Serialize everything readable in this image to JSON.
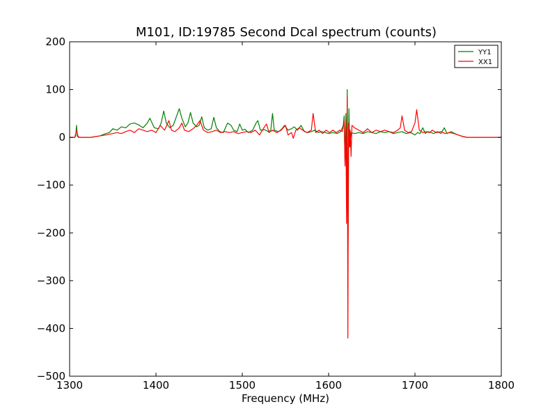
{
  "chart_data": {
    "type": "line",
    "title": "M101, ID:19785 Second Dcal spectrum (counts)",
    "xlabel": "Frequency (MHz)",
    "ylabel": "",
    "xlim": [
      1300,
      1800
    ],
    "ylim": [
      -500,
      200
    ],
    "xticks": [
      1300,
      1400,
      1500,
      1600,
      1700,
      1800
    ],
    "yticks": [
      -500,
      -400,
      -300,
      -200,
      -100,
      0,
      100,
      200
    ],
    "legend": "top-right",
    "series": [
      {
        "name": "YY1",
        "color": "#008000",
        "points": [
          [
            1300,
            0
          ],
          [
            1306,
            0
          ],
          [
            1307,
            3
          ],
          [
            1308,
            25
          ],
          [
            1309,
            2
          ],
          [
            1312,
            0
          ],
          [
            1325,
            0
          ],
          [
            1335,
            3
          ],
          [
            1342,
            8
          ],
          [
            1346,
            10
          ],
          [
            1350,
            18
          ],
          [
            1355,
            15
          ],
          [
            1360,
            22
          ],
          [
            1365,
            20
          ],
          [
            1370,
            28
          ],
          [
            1375,
            30
          ],
          [
            1380,
            26
          ],
          [
            1385,
            20
          ],
          [
            1390,
            30
          ],
          [
            1393,
            40
          ],
          [
            1398,
            20
          ],
          [
            1403,
            18
          ],
          [
            1406,
            30
          ],
          [
            1409,
            55
          ],
          [
            1412,
            30
          ],
          [
            1416,
            20
          ],
          [
            1420,
            25
          ],
          [
            1424,
            45
          ],
          [
            1427,
            60
          ],
          [
            1430,
            40
          ],
          [
            1434,
            22
          ],
          [
            1437,
            30
          ],
          [
            1440,
            52
          ],
          [
            1443,
            30
          ],
          [
            1447,
            22
          ],
          [
            1450,
            25
          ],
          [
            1453,
            43
          ],
          [
            1456,
            20
          ],
          [
            1460,
            15
          ],
          [
            1464,
            18
          ],
          [
            1467,
            42
          ],
          [
            1470,
            20
          ],
          [
            1474,
            12
          ],
          [
            1478,
            10
          ],
          [
            1483,
            30
          ],
          [
            1487,
            25
          ],
          [
            1490,
            15
          ],
          [
            1494,
            12
          ],
          [
            1497,
            28
          ],
          [
            1500,
            15
          ],
          [
            1503,
            17
          ],
          [
            1507,
            10
          ],
          [
            1512,
            15
          ],
          [
            1516,
            30
          ],
          [
            1518,
            35
          ],
          [
            1521,
            15
          ],
          [
            1526,
            16
          ],
          [
            1530,
            12
          ],
          [
            1533,
            15
          ],
          [
            1535,
            50
          ],
          [
            1537,
            15
          ],
          [
            1542,
            12
          ],
          [
            1546,
            18
          ],
          [
            1549,
            25
          ],
          [
            1553,
            15
          ],
          [
            1557,
            18
          ],
          [
            1560,
            22
          ],
          [
            1564,
            15
          ],
          [
            1568,
            25
          ],
          [
            1572,
            12
          ],
          [
            1576,
            10
          ],
          [
            1580,
            12
          ],
          [
            1584,
            15
          ],
          [
            1588,
            10
          ],
          [
            1592,
            12
          ],
          [
            1596,
            10
          ],
          [
            1600,
            8
          ],
          [
            1605,
            10
          ],
          [
            1610,
            8
          ],
          [
            1614,
            12
          ],
          [
            1617,
            25
          ],
          [
            1618,
            45
          ],
          [
            1619,
            -50
          ],
          [
            1620,
            50
          ],
          [
            1621,
            -70
          ],
          [
            1621.5,
            100
          ],
          [
            1622.5,
            -240
          ],
          [
            1623.5,
            60
          ],
          [
            1624.5,
            -20
          ],
          [
            1626,
            10
          ],
          [
            1630,
            8
          ],
          [
            1635,
            10
          ],
          [
            1640,
            8
          ],
          [
            1645,
            12
          ],
          [
            1650,
            10
          ],
          [
            1655,
            8
          ],
          [
            1660,
            12
          ],
          [
            1665,
            10
          ],
          [
            1670,
            12
          ],
          [
            1675,
            8
          ],
          [
            1680,
            10
          ],
          [
            1685,
            12
          ],
          [
            1690,
            8
          ],
          [
            1695,
            10
          ],
          [
            1700,
            5
          ],
          [
            1703,
            10
          ],
          [
            1706,
            8
          ],
          [
            1709,
            20
          ],
          [
            1712,
            8
          ],
          [
            1715,
            12
          ],
          [
            1719,
            10
          ],
          [
            1722,
            8
          ],
          [
            1726,
            12
          ],
          [
            1730,
            8
          ],
          [
            1734,
            20
          ],
          [
            1737,
            8
          ],
          [
            1742,
            12
          ],
          [
            1746,
            8
          ],
          [
            1750,
            5
          ],
          [
            1755,
            2
          ],
          [
            1760,
            0
          ],
          [
            1800,
            0
          ]
        ]
      },
      {
        "name": "XX1",
        "color": "#ff0000",
        "points": [
          [
            1300,
            0
          ],
          [
            1306,
            0
          ],
          [
            1308,
            15
          ],
          [
            1310,
            0
          ],
          [
            1325,
            0
          ],
          [
            1335,
            3
          ],
          [
            1342,
            5
          ],
          [
            1350,
            8
          ],
          [
            1355,
            10
          ],
          [
            1360,
            8
          ],
          [
            1365,
            12
          ],
          [
            1370,
            15
          ],
          [
            1375,
            10
          ],
          [
            1380,
            18
          ],
          [
            1385,
            15
          ],
          [
            1390,
            12
          ],
          [
            1395,
            15
          ],
          [
            1400,
            10
          ],
          [
            1405,
            25
          ],
          [
            1410,
            15
          ],
          [
            1415,
            35
          ],
          [
            1418,
            15
          ],
          [
            1422,
            12
          ],
          [
            1427,
            20
          ],
          [
            1430,
            30
          ],
          [
            1433,
            15
          ],
          [
            1438,
            12
          ],
          [
            1443,
            18
          ],
          [
            1447,
            25
          ],
          [
            1451,
            35
          ],
          [
            1455,
            15
          ],
          [
            1460,
            10
          ],
          [
            1465,
            12
          ],
          [
            1470,
            15
          ],
          [
            1475,
            10
          ],
          [
            1480,
            12
          ],
          [
            1485,
            10
          ],
          [
            1490,
            12
          ],
          [
            1495,
            8
          ],
          [
            1500,
            10
          ],
          [
            1505,
            12
          ],
          [
            1510,
            10
          ],
          [
            1515,
            15
          ],
          [
            1520,
            5
          ],
          [
            1525,
            20
          ],
          [
            1528,
            28
          ],
          [
            1531,
            10
          ],
          [
            1535,
            15
          ],
          [
            1540,
            10
          ],
          [
            1545,
            15
          ],
          [
            1550,
            25
          ],
          [
            1553,
            5
          ],
          [
            1557,
            10
          ],
          [
            1559,
            -2
          ],
          [
            1562,
            15
          ],
          [
            1566,
            20
          ],
          [
            1570,
            15
          ],
          [
            1575,
            10
          ],
          [
            1580,
            15
          ],
          [
            1582,
            50
          ],
          [
            1585,
            10
          ],
          [
            1589,
            15
          ],
          [
            1593,
            8
          ],
          [
            1597,
            15
          ],
          [
            1601,
            10
          ],
          [
            1605,
            15
          ],
          [
            1609,
            10
          ],
          [
            1613,
            15
          ],
          [
            1616,
            12
          ],
          [
            1618,
            35
          ],
          [
            1619,
            -60
          ],
          [
            1620,
            20
          ],
          [
            1620.8,
            -180
          ],
          [
            1621.6,
            85
          ],
          [
            1622.3,
            -420
          ],
          [
            1623,
            30
          ],
          [
            1624,
            -20
          ],
          [
            1625,
            15
          ],
          [
            1626,
            -40
          ],
          [
            1627,
            25
          ],
          [
            1630,
            20
          ],
          [
            1635,
            15
          ],
          [
            1640,
            10
          ],
          [
            1645,
            18
          ],
          [
            1650,
            10
          ],
          [
            1655,
            15
          ],
          [
            1660,
            12
          ],
          [
            1665,
            15
          ],
          [
            1670,
            12
          ],
          [
            1675,
            10
          ],
          [
            1680,
            15
          ],
          [
            1683,
            20
          ],
          [
            1685,
            45
          ],
          [
            1688,
            15
          ],
          [
            1692,
            10
          ],
          [
            1696,
            12
          ],
          [
            1700,
            30
          ],
          [
            1702,
            58
          ],
          [
            1705,
            15
          ],
          [
            1709,
            10
          ],
          [
            1713,
            12
          ],
          [
            1717,
            10
          ],
          [
            1720,
            15
          ],
          [
            1725,
            10
          ],
          [
            1730,
            12
          ],
          [
            1735,
            8
          ],
          [
            1740,
            10
          ],
          [
            1745,
            8
          ],
          [
            1750,
            5
          ],
          [
            1755,
            2
          ],
          [
            1760,
            0
          ],
          [
            1800,
            0
          ]
        ]
      }
    ]
  }
}
